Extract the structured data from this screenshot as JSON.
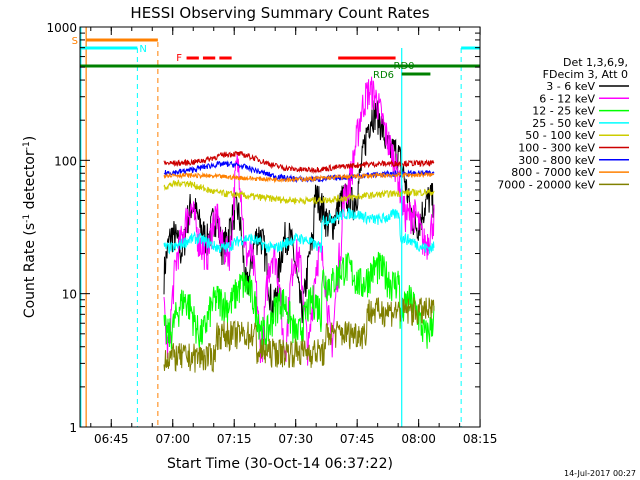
{
  "chart_data": {
    "type": "line",
    "title": "HESSI Observing Summary Count Rates",
    "xlabel": "Start Time (30-Oct-14 06:37:22)",
    "ylabel_main": "Count Rate (s",
    "ylabel_sup1": "-1",
    "ylabel_mid": " detector",
    "ylabel_sup2": "-1",
    "ylabel_end": ")",
    "yscale": "log",
    "ylim": [
      1,
      1000
    ],
    "xlim_minutes": [
      0,
      97.6
    ],
    "x_tick_minutes": [
      7.63,
      22.63,
      37.63,
      52.63,
      67.63,
      82.63,
      97.63
    ],
    "x_tick_labels": [
      "06:45",
      "07:00",
      "07:15",
      "07:30",
      "07:45",
      "08:00",
      "08:15"
    ],
    "y_ticks": [
      1,
      10,
      100,
      1000
    ],
    "y_tick_labels": [
      "1",
      "10",
      "100",
      "1000"
    ],
    "legend_header": [
      "Det 1,3,6,9,",
      "FDecim 3, Att 0"
    ],
    "series": [
      {
        "name": "3 - 6 keV",
        "color": "#000000"
      },
      {
        "name": "6 - 12 keV",
        "color": "#ff00ff"
      },
      {
        "name": "12 - 25 keV",
        "color": "#00ff00"
      },
      {
        "name": "25 - 50 keV",
        "color": "#00ffff"
      },
      {
        "name": "50 - 100 keV",
        "color": "#cccc00"
      },
      {
        "name": "100 - 300 keV",
        "color": "#cc0000"
      },
      {
        "name": "300 - 800 keV",
        "color": "#0000ff"
      },
      {
        "name": "800 - 7000 keV",
        "color": "#ff8000"
      },
      {
        "name": "7000 - 20000 keV",
        "color": "#808000"
      }
    ],
    "flags": {
      "saa_label": "S",
      "night_label": "N",
      "flare_label": "F",
      "rd0_label": "RD0",
      "rd6_label": "RD6"
    },
    "timestamp": "14-Jul-2017 00:27"
  }
}
